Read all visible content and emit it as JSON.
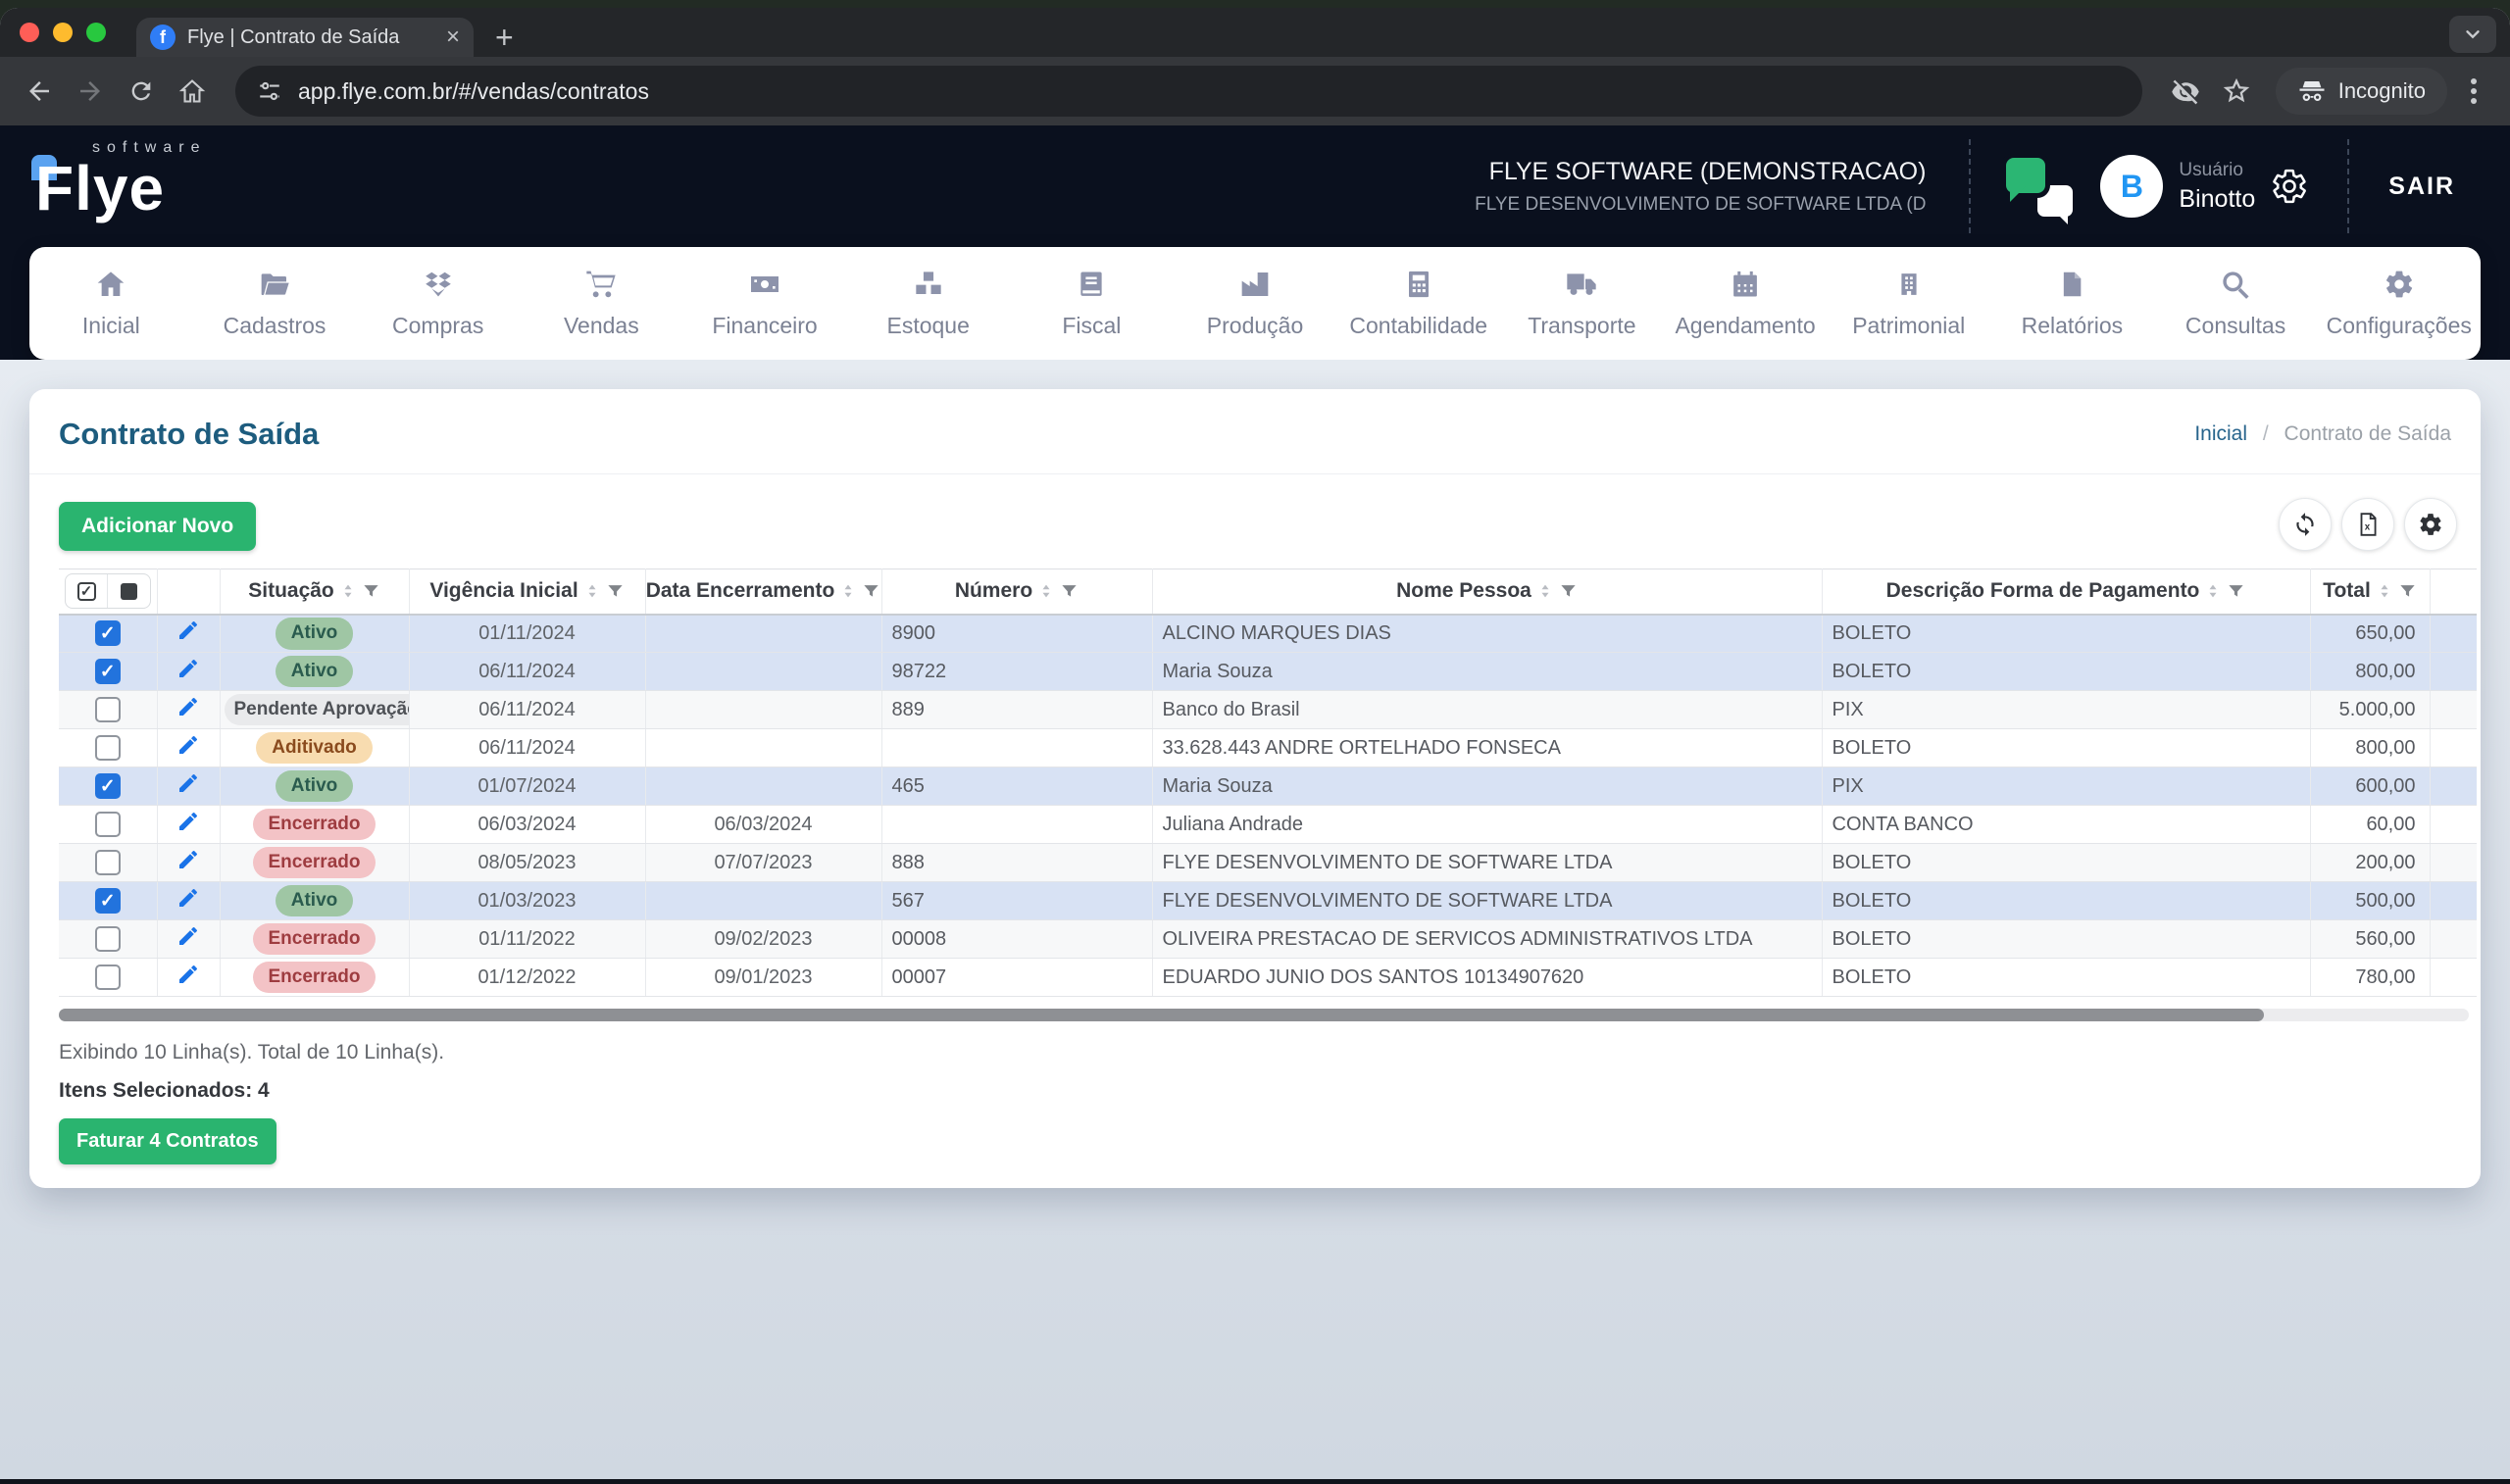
{
  "browser": {
    "tab_title": "Flye | Contrato de Saída",
    "url": "app.flye.com.br/#/vendas/contratos",
    "incognito_label": "Incognito"
  },
  "header": {
    "logo_word": "Flye",
    "logo_sub": "software",
    "company_name": "FLYE SOFTWARE (DEMONSTRACAO)",
    "company_sub": "FLYE DESENVOLVIMENTO DE SOFTWARE LTDA (D",
    "user_label": "Usuário",
    "user_name": "Binotto",
    "avatar_initial": "B",
    "logout_label": "SAIR"
  },
  "nav": {
    "items": [
      {
        "label": "Inicial",
        "icon": "home"
      },
      {
        "label": "Cadastros",
        "icon": "folder-open"
      },
      {
        "label": "Compras",
        "icon": "diamonds"
      },
      {
        "label": "Vendas",
        "icon": "shopping-cart"
      },
      {
        "label": "Financeiro",
        "icon": "money-bill"
      },
      {
        "label": "Estoque",
        "icon": "cubes"
      },
      {
        "label": "Fiscal",
        "icon": "book"
      },
      {
        "label": "Produção",
        "icon": "factory"
      },
      {
        "label": "Contabilidade",
        "icon": "calculator"
      },
      {
        "label": "Transporte",
        "icon": "truck"
      },
      {
        "label": "Agendamento",
        "icon": "calendar"
      },
      {
        "label": "Patrimonial",
        "icon": "building"
      },
      {
        "label": "Relatórios",
        "icon": "file"
      },
      {
        "label": "Consultas",
        "icon": "search"
      },
      {
        "label": "Configurações",
        "icon": "gear"
      }
    ]
  },
  "page": {
    "title": "Contrato de Saída",
    "breadcrumb": {
      "home": "Inicial",
      "separator": "/",
      "current": "Contrato de Saída"
    },
    "add_button": "Adicionar Novo"
  },
  "table": {
    "columns": [
      "Situação",
      "Vigência Inicial",
      "Data Encerramento",
      "Número",
      "Nome Pessoa",
      "Descrição Forma de Pagamento",
      "Total"
    ],
    "rows": [
      {
        "selected": true,
        "situacao": "Ativo",
        "status_type": "ativo",
        "vigencia_inicial": "01/11/2024",
        "data_encerramento": "",
        "numero": "8900",
        "nome_pessoa": "ALCINO MARQUES DIAS",
        "forma_pagamento": "BOLETO",
        "total": "650,00"
      },
      {
        "selected": true,
        "situacao": "Ativo",
        "status_type": "ativo",
        "vigencia_inicial": "06/11/2024",
        "data_encerramento": "",
        "numero": "98722",
        "nome_pessoa": "Maria Souza",
        "forma_pagamento": "BOLETO",
        "total": "800,00"
      },
      {
        "selected": false,
        "situacao": "Pendente Aprovação",
        "status_type": "pendente",
        "vigencia_inicial": "06/11/2024",
        "data_encerramento": "",
        "numero": "889",
        "nome_pessoa": "Banco do Brasil",
        "forma_pagamento": "PIX",
        "total": "5.000,00"
      },
      {
        "selected": false,
        "situacao": "Aditivado",
        "status_type": "aditivado",
        "vigencia_inicial": "06/11/2024",
        "data_encerramento": "",
        "numero": "",
        "nome_pessoa": "33.628.443 ANDRE ORTELHADO FONSECA",
        "forma_pagamento": "BOLETO",
        "total": "800,00"
      },
      {
        "selected": true,
        "situacao": "Ativo",
        "status_type": "ativo",
        "vigencia_inicial": "01/07/2024",
        "data_encerramento": "",
        "numero": "465",
        "nome_pessoa": "Maria Souza",
        "forma_pagamento": "PIX",
        "total": "600,00"
      },
      {
        "selected": false,
        "situacao": "Encerrado",
        "status_type": "encerrado",
        "vigencia_inicial": "06/03/2024",
        "data_encerramento": "06/03/2024",
        "numero": "",
        "nome_pessoa": "Juliana Andrade",
        "forma_pagamento": "CONTA BANCO",
        "total": "60,00"
      },
      {
        "selected": false,
        "situacao": "Encerrado",
        "status_type": "encerrado",
        "vigencia_inicial": "08/05/2023",
        "data_encerramento": "07/07/2023",
        "numero": "888",
        "nome_pessoa": "FLYE DESENVOLVIMENTO DE SOFTWARE LTDA",
        "forma_pagamento": "BOLETO",
        "total": "200,00"
      },
      {
        "selected": true,
        "situacao": "Ativo",
        "status_type": "ativo",
        "vigencia_inicial": "01/03/2023",
        "data_encerramento": "",
        "numero": "567",
        "nome_pessoa": "FLYE DESENVOLVIMENTO DE SOFTWARE LTDA",
        "forma_pagamento": "BOLETO",
        "total": "500,00"
      },
      {
        "selected": false,
        "situacao": "Encerrado",
        "status_type": "encerrado",
        "vigencia_inicial": "01/11/2022",
        "data_encerramento": "09/02/2023",
        "numero": "00008",
        "nome_pessoa": "OLIVEIRA PRESTACAO DE SERVICOS ADMINISTRATIVOS LTDA",
        "forma_pagamento": "BOLETO",
        "total": "560,00"
      },
      {
        "selected": false,
        "situacao": "Encerrado",
        "status_type": "encerrado",
        "vigencia_inicial": "01/12/2022",
        "data_encerramento": "09/01/2023",
        "numero": "00007",
        "nome_pessoa": "EDUARDO JUNIO DOS SANTOS 10134907620",
        "forma_pagamento": "BOLETO",
        "total": "780,00"
      }
    ]
  },
  "footer": {
    "showing": "Exibindo 10 Linha(s). Total de 10 Linha(s).",
    "selected_label": "Itens Selecionados: 4",
    "invoice_button": "Faturar 4 Contratos"
  },
  "colors": {
    "accent_green": "#2ab46f",
    "header_navy": "#0a101e",
    "selected_row": "#d8e2f4",
    "badge_ativo_bg": "#9fc6a4",
    "badge_pendente_bg": "#e9eaec",
    "badge_aditivado_bg": "#f8dcb0",
    "badge_encerrado_bg": "#f3c3c6",
    "title_blue": "#1d5c7e",
    "checkbox_blue": "#2273dd"
  }
}
